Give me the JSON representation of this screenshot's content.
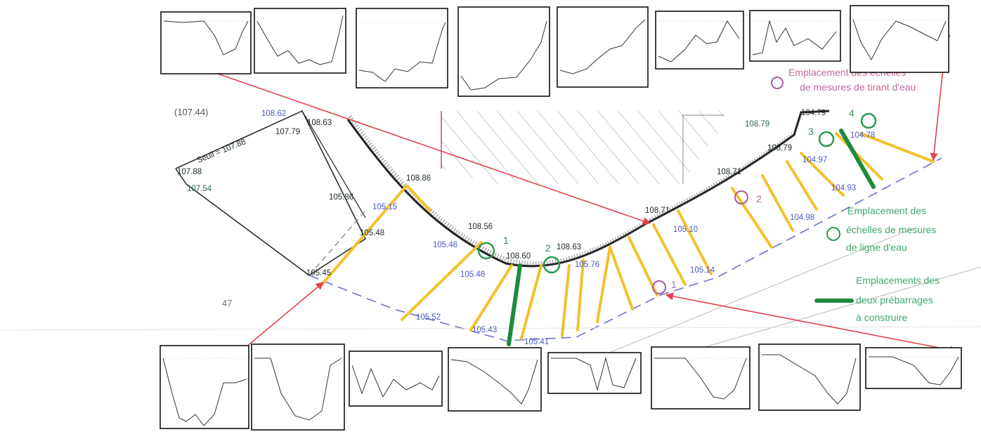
{
  "elevations": [
    {
      "id": "e1",
      "text": "108.62",
      "color": "blue"
    },
    {
      "id": "e2",
      "text": "107.79",
      "color": "dark"
    },
    {
      "id": "e3",
      "text": "108.63",
      "color": "dark"
    },
    {
      "id": "e4",
      "text": "107.88",
      "color": "dark"
    },
    {
      "id": "e5",
      "text": "107.54",
      "color": "green"
    },
    {
      "id": "e6",
      "text": "105.86",
      "color": "dark"
    },
    {
      "id": "e7",
      "text": "108.86",
      "color": "dark"
    },
    {
      "id": "e8",
      "text": "105.15",
      "color": "blue"
    },
    {
      "id": "e9",
      "text": "105.48",
      "color": "dark"
    },
    {
      "id": "e10",
      "text": "105.45",
      "color": "dark"
    },
    {
      "id": "e11",
      "text": "108.56",
      "color": "dark"
    },
    {
      "id": "e12",
      "text": "105.46",
      "color": "blue"
    },
    {
      "id": "e13",
      "text": "105.48",
      "color": "blue"
    },
    {
      "id": "e14",
      "text": "108.60",
      "color": "dark"
    },
    {
      "id": "e15",
      "text": "108.63",
      "color": "dark"
    },
    {
      "id": "e16",
      "text": "105.76",
      "color": "blue"
    },
    {
      "id": "e17",
      "text": "105.52",
      "color": "blue"
    },
    {
      "id": "e18",
      "text": "105.43",
      "color": "blue"
    },
    {
      "id": "e19",
      "text": "105.41",
      "color": "blue"
    },
    {
      "id": "e20",
      "text": "108.71",
      "color": "dark"
    },
    {
      "id": "e21",
      "text": "105.10",
      "color": "blue"
    },
    {
      "id": "e22",
      "text": "105.14",
      "color": "blue"
    },
    {
      "id": "e23",
      "text": "108.71",
      "color": "dark"
    },
    {
      "id": "e24",
      "text": "104.98",
      "color": "blue"
    },
    {
      "id": "e25",
      "text": "108.79",
      "color": "green"
    },
    {
      "id": "e26",
      "text": "108.79",
      "color": "dark"
    },
    {
      "id": "e27",
      "text": "104.97",
      "color": "blue"
    },
    {
      "id": "e28",
      "text": "104.79",
      "color": "dark"
    },
    {
      "id": "e29",
      "text": "104.78",
      "color": "blue"
    },
    {
      "id": "e30",
      "text": "104.93",
      "color": "blue"
    },
    {
      "id": "e31",
      "text": "107.88",
      "color": "dark"
    }
  ],
  "labels": {
    "seuil": "Seuil = 107.88",
    "page_number": "47",
    "top_left_fragment": "(107.44)"
  },
  "markers": {
    "draught_numbers": [
      "1",
      "2",
      "3",
      "4"
    ],
    "waterline_numbers": [
      "1",
      "2"
    ]
  },
  "legend": {
    "draught_gauges": [
      "Emplacement des échelles",
      "de mesures de tirant d'eau"
    ],
    "waterline_gauges": [
      "Emplacement des",
      "échelles de mesures",
      "de ligne d'eau"
    ],
    "prebarrages": [
      "Emplacements des",
      "deux prébarrages",
      "à construire"
    ]
  },
  "colors": {
    "cross_section": "#f4c02c",
    "prebarrage": "#1e8a3c",
    "draught_circle": "#a85c9c",
    "waterline_circle": "#2e9a54",
    "arrow": "#e0434f",
    "channel_edge": "#6a72c8"
  }
}
